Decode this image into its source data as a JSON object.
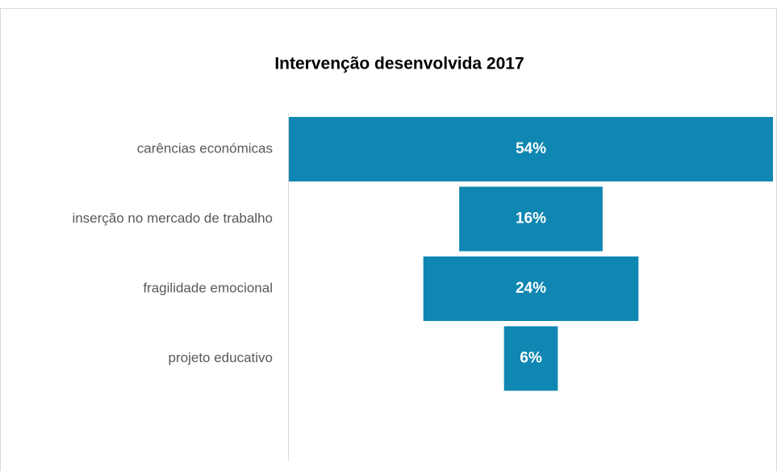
{
  "chart_data": {
    "type": "funnel",
    "title": "Intervenção desenvolvida 2017",
    "categories": [
      "carências económicas",
      "inserção no mercado de trabalho",
      "fragilidade emocional",
      "projeto educativo"
    ],
    "values": [
      54,
      16,
      24,
      6
    ],
    "value_labels": [
      "54%",
      "16%",
      "24%",
      "6%"
    ],
    "color": "#0f87b2"
  }
}
